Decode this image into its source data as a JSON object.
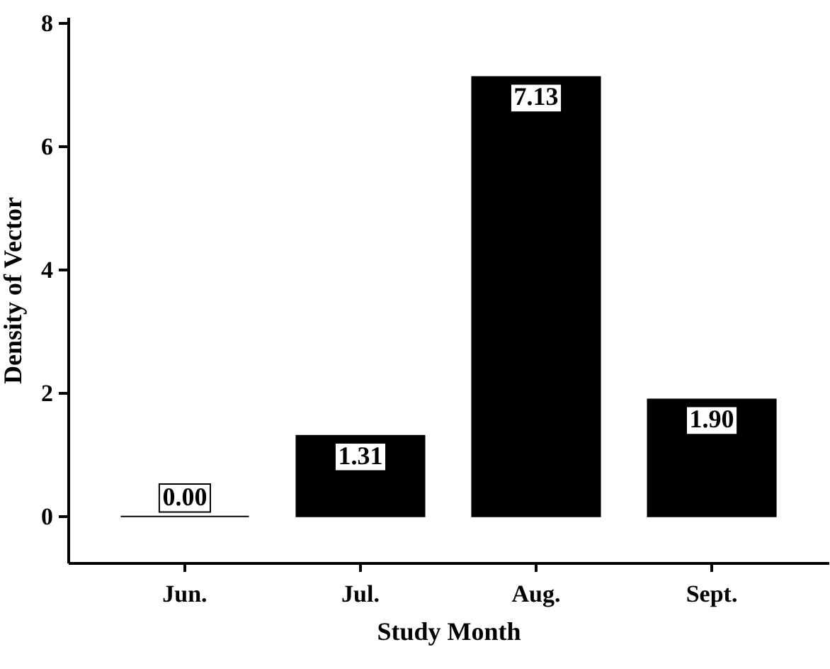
{
  "chart_data": {
    "type": "bar",
    "xlabel": "Study Month",
    "ylabel": "Density of Vector",
    "categories": [
      "Jun.",
      "Jul.",
      "Aug.",
      "Sept."
    ],
    "values": [
      0.0,
      1.31,
      7.13,
      1.9
    ],
    "color": "#000000",
    "value_labels": [
      "0.00",
      "1.31",
      "7.13",
      "1.90"
    ],
    "ylim": [
      -0.75,
      8.1
    ],
    "yticks": [
      0,
      2,
      4,
      6,
      8
    ],
    "grid": false
  }
}
